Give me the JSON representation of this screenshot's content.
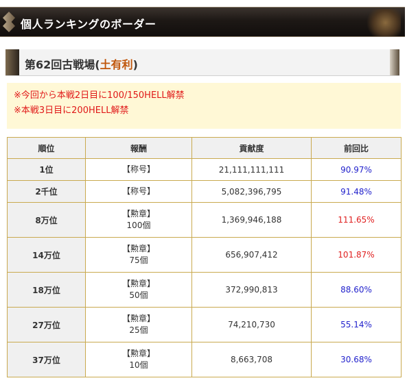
{
  "banner": {
    "title": "個人ランキングのボーダー"
  },
  "section": {
    "title_prefix": "第62回古戦場(",
    "attribute": "土有利",
    "title_suffix": ")"
  },
  "notices": [
    "※今回から本戦2日目に100/150HELL解禁",
    "※本戦3日目に200HELL解禁"
  ],
  "table": {
    "headers": [
      "順位",
      "報酬",
      "貢献度",
      "前回比"
    ],
    "rows": [
      {
        "rank": "1位",
        "reward": "【称号】",
        "reward_qty": "",
        "score": "21,111,111,111",
        "ratio": "90.97%",
        "ratio_color": "#2222cc"
      },
      {
        "rank": "2千位",
        "reward": "【称号】",
        "reward_qty": "",
        "score": "5,082,396,795",
        "ratio": "91.48%",
        "ratio_color": "#2222cc"
      },
      {
        "rank": "8万位",
        "reward": "【勲章】",
        "reward_qty": "100個",
        "score": "1,369,946,188",
        "ratio": "111.65%",
        "ratio_color": "#e02020"
      },
      {
        "rank": "14万位",
        "reward": "【勲章】",
        "reward_qty": "75個",
        "score": "656,907,412",
        "ratio": "101.87%",
        "ratio_color": "#e02020"
      },
      {
        "rank": "18万位",
        "reward": "【勲章】",
        "reward_qty": "50個",
        "score": "372,990,813",
        "ratio": "88.60%",
        "ratio_color": "#2222cc"
      },
      {
        "rank": "27万位",
        "reward": "【勲章】",
        "reward_qty": "25個",
        "score": "74,210,730",
        "ratio": "55.14%",
        "ratio_color": "#2222cc"
      },
      {
        "rank": "37万位",
        "reward": "【勲章】",
        "reward_qty": "10個",
        "score": "8,663,708",
        "ratio": "30.68%",
        "ratio_color": "#2222cc"
      }
    ]
  }
}
